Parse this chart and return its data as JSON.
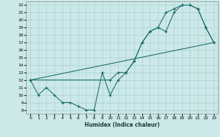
{
  "xlabel": "Humidex (Indice chaleur)",
  "xlim": [
    -0.5,
    23.5
  ],
  "ylim": [
    7.5,
    22.5
  ],
  "yticks": [
    8,
    9,
    10,
    11,
    12,
    13,
    14,
    15,
    16,
    17,
    18,
    19,
    20,
    21,
    22
  ],
  "xticks": [
    0,
    1,
    2,
    3,
    4,
    5,
    6,
    7,
    8,
    9,
    10,
    11,
    12,
    13,
    14,
    15,
    16,
    17,
    18,
    19,
    20,
    21,
    22,
    23
  ],
  "bg_color": "#cce8e8",
  "line_color": "#1a6b6b",
  "grid_color": "#aad4d4",
  "line1_x": [
    0,
    1,
    2,
    3,
    4,
    5,
    6,
    7,
    8,
    9,
    10,
    11,
    12,
    13,
    14,
    15,
    16,
    17,
    18,
    19,
    20,
    21,
    22,
    23
  ],
  "line1_y": [
    12,
    10,
    11,
    10,
    9,
    9,
    8.5,
    8,
    8,
    13,
    10,
    12,
    13,
    14.5,
    17,
    18.5,
    19,
    18.5,
    21,
    22,
    22,
    21.5,
    19,
    17
  ],
  "line2_x": [
    0,
    10,
    11,
    12,
    13,
    14,
    15,
    16,
    17,
    18,
    19,
    20,
    21,
    22,
    23
  ],
  "line2_y": [
    12,
    12,
    13,
    13,
    14.5,
    17,
    18.5,
    19,
    21,
    21.5,
    22,
    22,
    21.5,
    19,
    17
  ],
  "line3_x": [
    0,
    23
  ],
  "line3_y": [
    12,
    17
  ]
}
